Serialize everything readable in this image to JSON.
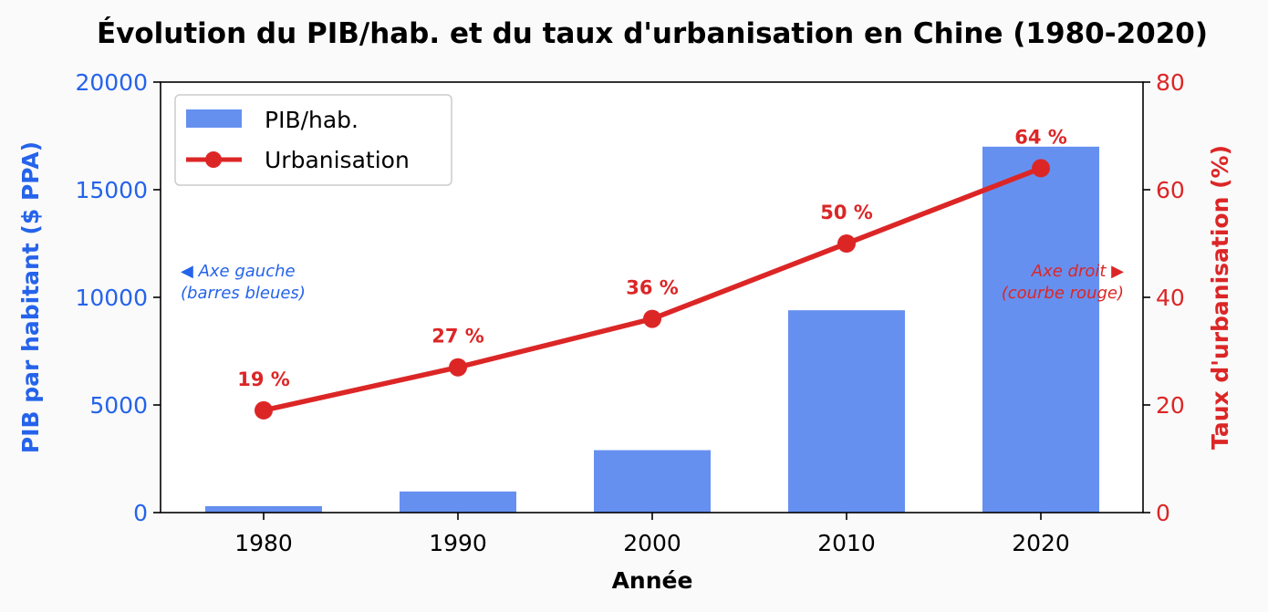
{
  "chart_data": {
    "type": "bar+line",
    "title": "Évolution du PIB/hab. et du taux d'urbanisation en Chine (1980-2020)",
    "xlabel": "Année",
    "categories": [
      "1980",
      "1990",
      "2000",
      "2010",
      "2020"
    ],
    "y_left": {
      "label": "PIB par habitant ($ PPA)",
      "ylim": [
        0,
        20000
      ],
      "ticks": [
        "0",
        "5000",
        "10000",
        "15000",
        "20000"
      ],
      "color": "#2563eb"
    },
    "y_right": {
      "label": "Taux d'urbanisation (%)",
      "ylim": [
        0,
        80
      ],
      "ticks": [
        "0",
        "20",
        "40",
        "60",
        "80"
      ],
      "color": "#dc2626"
    },
    "series": [
      {
        "name": "PIB/hab.",
        "type": "bar",
        "axis": "left",
        "values": [
          300,
          980,
          2900,
          9400,
          17000
        ],
        "color": "#6690f0"
      },
      {
        "name": "Urbanisation",
        "type": "line",
        "axis": "right",
        "values": [
          19,
          27,
          36,
          50,
          64
        ],
        "labels": [
          "19 %",
          "27 %",
          "36 %",
          "50 %",
          "64 %"
        ],
        "color": "#dc2626"
      }
    ],
    "legend": {
      "placement": "top-left",
      "entries": [
        "PIB/hab.",
        "Urbanisation"
      ]
    },
    "annotations": {
      "left_line1": "◀ Axe gauche",
      "left_line2": "(barres bleues)",
      "right_line1": "Axe droit ▶",
      "right_line2": "(courbe rouge)"
    },
    "grid": false
  }
}
